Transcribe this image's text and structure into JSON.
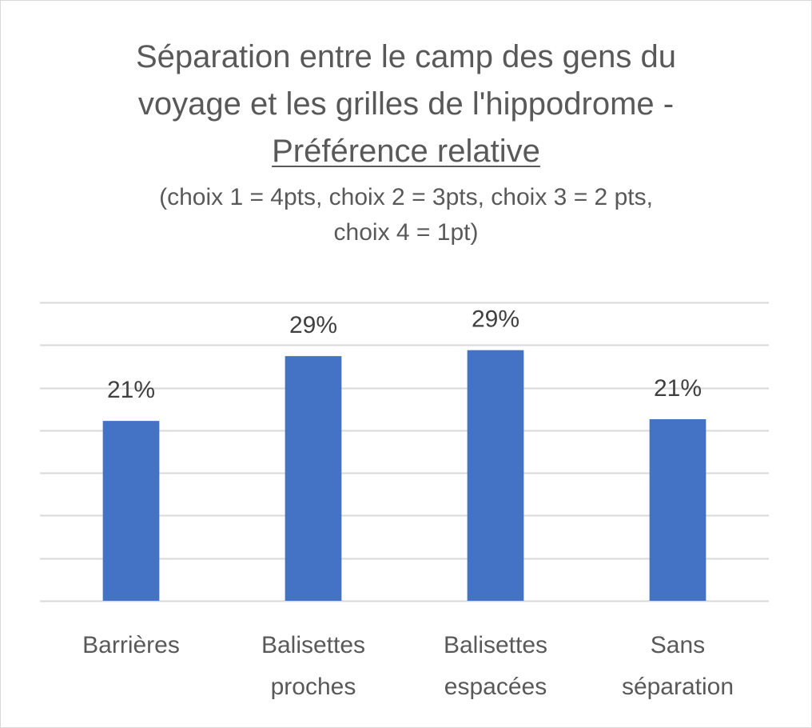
{
  "chart_data": {
    "type": "bar",
    "title_lines": [
      "Séparation entre le camp des gens du",
      "voyage et les grilles de l'hippodrome -",
      "Préférence relative"
    ],
    "subtitle_lines": [
      "(choix 1 = 4pts, choix 2 = 3pts, choix 3 = 2 pts,",
      "choix 4 = 1pt)"
    ],
    "categories": [
      [
        "Barrières"
      ],
      [
        "Balisettes",
        "proches"
      ],
      [
        "Balisettes",
        "espacées"
      ],
      [
        "Sans",
        "séparation"
      ]
    ],
    "values": [
      21.1,
      28.7,
      29.4,
      21.3
    ],
    "data_labels": [
      "21%",
      "29%",
      "29%",
      "21%"
    ],
    "ylim": [
      0,
      35
    ],
    "gridline_step": 5,
    "grid": true,
    "legend": "none",
    "xlabel": "",
    "ylabel": "",
    "bar_color": "#4472c4",
    "grid_color": "#d9d9d9",
    "text_color": "#595959"
  }
}
